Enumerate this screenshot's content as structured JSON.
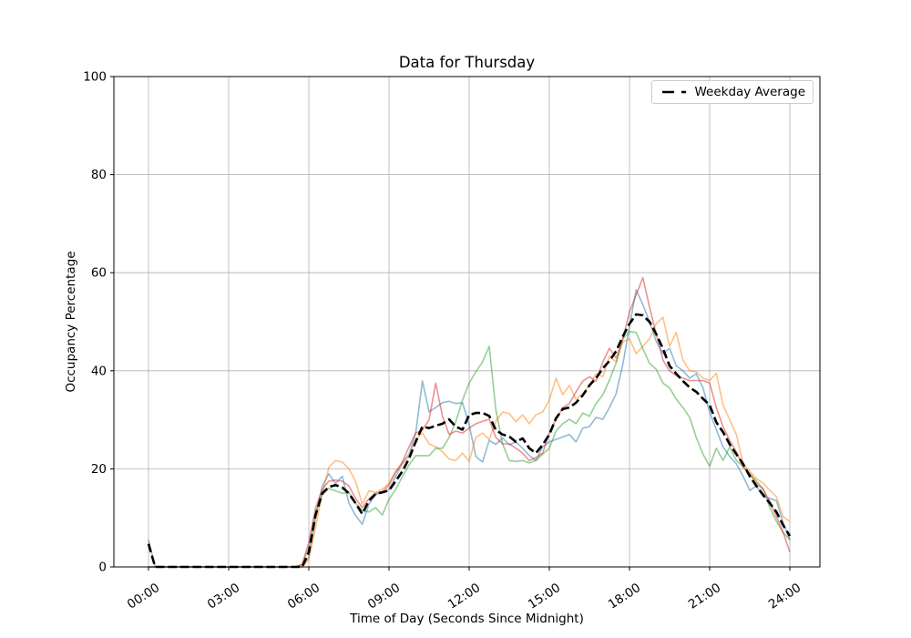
{
  "title": "Data for Thursday",
  "axis": {
    "xlabel": "Time of Day (Seconds Since Midnight)",
    "ylabel": "Occupancy Percentage"
  },
  "legend": {
    "label": "Weekday Average"
  },
  "chart_data": {
    "type": "line",
    "title": "Data for Thursday",
    "xlabel": "Time of Day (Seconds Since Midnight)",
    "ylabel": "Occupancy Percentage",
    "grid": true,
    "grid_color": "#b0b0b0",
    "background_color": "#ffffff",
    "legend_position": "upper right",
    "legend_entries": [
      "Weekday Average"
    ],
    "ylim": [
      0,
      100
    ],
    "y_ticks": [
      0,
      20,
      40,
      60,
      80,
      100
    ],
    "x_tick_hours": [
      0,
      3,
      6,
      9,
      12,
      15,
      18,
      21,
      24
    ],
    "x_tick_labels": [
      "00:00",
      "03:00",
      "06:00",
      "09:00",
      "12:00",
      "15:00",
      "18:00",
      "21:00",
      "24:00"
    ],
    "x_hours": [
      0,
      0.25,
      0.5,
      0.75,
      1,
      1.25,
      1.5,
      1.75,
      2,
      2.25,
      2.5,
      2.75,
      3,
      3.25,
      3.5,
      3.75,
      4,
      4.25,
      4.5,
      4.75,
      5,
      5.25,
      5.5,
      5.75,
      6,
      6.25,
      6.5,
      6.75,
      7,
      7.25,
      7.5,
      7.75,
      8,
      8.25,
      8.5,
      8.75,
      9,
      9.25,
      9.5,
      9.75,
      10,
      10.25,
      10.5,
      10.75,
      11,
      11.25,
      11.5,
      11.75,
      12,
      12.25,
      12.5,
      12.75,
      13,
      13.25,
      13.5,
      13.75,
      14,
      14.25,
      14.5,
      14.75,
      15,
      15.25,
      15.5,
      15.75,
      16,
      16.25,
      16.5,
      16.75,
      17,
      17.25,
      17.5,
      17.75,
      18,
      18.25,
      18.5,
      18.75,
      19,
      19.25,
      19.5,
      19.75,
      20,
      20.25,
      20.5,
      20.75,
      21,
      21.25,
      21.5,
      21.75,
      22,
      22.25,
      22.5,
      22.75,
      23,
      23.25,
      23.5,
      23.75,
      24
    ],
    "series": [
      {
        "id": "day-line-1",
        "color": "#1f77b4",
        "alpha": 0.5,
        "width": 1.6,
        "dashed": false,
        "values": [
          5.5,
          0,
          0,
          0,
          0,
          0,
          0,
          0,
          0,
          0,
          0,
          0,
          0,
          0,
          0,
          0,
          0,
          0,
          0,
          0,
          0,
          0,
          0,
          0,
          2,
          10,
          16.5,
          19,
          17,
          18.5,
          13,
          10.5,
          8.7,
          12.8,
          14.7,
          15.2,
          15.8,
          18.4,
          21.2,
          23,
          27.3,
          37.9,
          31.6,
          32.5,
          33.5,
          33.8,
          33.3,
          33.5,
          29,
          22.5,
          21.4,
          25.8,
          25,
          26.3,
          24.9,
          25.5,
          24.2,
          22.7,
          21.7,
          24.5,
          25.5,
          26,
          26.5,
          27,
          25.5,
          28.3,
          28.6,
          30.5,
          30.1,
          32.5,
          35.3,
          41.3,
          49,
          56.5,
          53.5,
          50,
          46,
          43.5,
          44.6,
          41,
          40,
          38.5,
          39.4,
          36.5,
          31.5,
          28,
          24.5,
          22.5,
          21,
          18.5,
          15.6,
          16.5,
          14.3,
          14,
          13.5,
          9,
          5.5
        ]
      },
      {
        "id": "day-line-2",
        "color": "#ff7f0e",
        "alpha": 0.5,
        "width": 1.6,
        "dashed": false,
        "values": [
          0,
          0,
          0,
          0,
          0,
          0,
          0,
          0,
          0,
          0,
          0,
          0,
          0,
          0,
          0,
          0,
          0,
          0,
          0,
          0,
          0,
          0,
          0,
          0,
          1.5,
          8,
          15,
          20.3,
          21.7,
          21.4,
          20,
          17.5,
          12.8,
          15.5,
          15.2,
          15.8,
          17.1,
          19.5,
          21,
          22.5,
          26,
          27.3,
          25.1,
          24.5,
          23.5,
          22,
          21.7,
          23.2,
          21.5,
          26.4,
          27.3,
          26,
          29.7,
          31.6,
          31.3,
          29.6,
          31,
          29.2,
          31,
          31.6,
          34,
          38.5,
          35.1,
          37,
          34.2,
          35.3,
          37,
          39.4,
          38.8,
          43,
          41.8,
          45.9,
          46.5,
          43.5,
          45,
          46.5,
          49.6,
          50.9,
          45,
          47.8,
          42.2,
          40,
          39.8,
          38.5,
          38,
          39.5,
          33,
          30,
          27,
          21,
          19.5,
          18,
          17.1,
          15.6,
          14.3,
          10.2,
          9.3
        ]
      },
      {
        "id": "day-line-3",
        "color": "#2ca02c",
        "alpha": 0.5,
        "width": 1.6,
        "dashed": false,
        "values": [
          0,
          0,
          0,
          0,
          0,
          0,
          0,
          0,
          0,
          0,
          0,
          0,
          0,
          0,
          0,
          0,
          0,
          0,
          0,
          0,
          0,
          0,
          0,
          0.5,
          4,
          11,
          14.7,
          16,
          15.5,
          15,
          15.2,
          13,
          11.5,
          11.2,
          12.1,
          10.6,
          13.8,
          15.8,
          18.4,
          20.8,
          22.7,
          22.7,
          22.7,
          24.2,
          24.2,
          26.4,
          29.6,
          34,
          37.5,
          39.8,
          41.8,
          45,
          32,
          25.1,
          21.7,
          21.5,
          21.7,
          21.2,
          21.7,
          23,
          24.2,
          27.7,
          29.2,
          30.1,
          29.2,
          31.4,
          30.7,
          33.3,
          35.1,
          38.1,
          41.6,
          46.5,
          48,
          47.8,
          44.5,
          41.5,
          40.3,
          37.5,
          36.5,
          34.2,
          32.5,
          30.5,
          26.4,
          23,
          20.5,
          24.2,
          21.7,
          24.5,
          21.7,
          20.5,
          19,
          17.5,
          16,
          12.1,
          9.3,
          7,
          5.5
        ]
      },
      {
        "id": "day-line-4",
        "color": "#d62728",
        "alpha": 0.5,
        "width": 1.6,
        "dashed": false,
        "values": [
          0,
          0,
          0,
          0,
          0,
          0,
          0,
          0,
          0,
          0,
          0,
          0,
          0,
          0,
          0,
          0,
          0,
          0,
          0,
          0,
          0,
          0,
          0,
          0.5,
          5,
          12,
          15.8,
          17.5,
          17.7,
          17.5,
          16.5,
          14,
          12.1,
          13.9,
          15,
          15.3,
          16.7,
          19.3,
          21.4,
          24.5,
          27.3,
          27.9,
          30,
          37.5,
          30.7,
          27,
          27.7,
          27.3,
          28.3,
          29.2,
          29.7,
          30.1,
          26.4,
          25.1,
          25.1,
          24.2,
          23.2,
          21.7,
          22.3,
          23.2,
          27.3,
          30.1,
          32.5,
          33.3,
          35.7,
          37.9,
          38.8,
          37.9,
          41.8,
          44.6,
          42.6,
          46.5,
          52,
          55.5,
          59,
          53,
          47.5,
          42.2,
          40,
          39,
          38.5,
          38,
          38,
          38,
          37.5,
          32.5,
          28.6,
          25.8,
          23.5,
          20.3,
          19,
          17,
          15.8,
          13.4,
          10.2,
          7,
          3
        ]
      },
      {
        "id": "weekday-average",
        "label": "Weekday Average",
        "color": "#000000",
        "alpha": 1,
        "width": 2.6,
        "dashed": true,
        "values": [
          4.7,
          0,
          0,
          0,
          0,
          0,
          0,
          0,
          0,
          0,
          0,
          0,
          0,
          0,
          0,
          0,
          0,
          0,
          0,
          0,
          0,
          0,
          0,
          0,
          3,
          10.5,
          15,
          16.3,
          16.7,
          16.2,
          15,
          13,
          10.8,
          13.5,
          14.9,
          15.2,
          15.6,
          17.5,
          19.5,
          22.1,
          25.5,
          28.6,
          28.3,
          28.8,
          29.2,
          30.1,
          28.6,
          28,
          31,
          31.4,
          31.4,
          30.8,
          27.9,
          27,
          26.6,
          25.5,
          26.2,
          24.2,
          23.2,
          24.9,
          27,
          30.3,
          32.2,
          32.5,
          33.5,
          35,
          37,
          38.5,
          40.5,
          42,
          44,
          47,
          49.6,
          51.5,
          51.3,
          50,
          47.5,
          44.5,
          41,
          39.4,
          37.9,
          36.6,
          35.7,
          34.3,
          33,
          29.5,
          27.5,
          25,
          23,
          21,
          18.5,
          16.5,
          14.7,
          13,
          11.2,
          8.5,
          6.3
        ]
      }
    ]
  }
}
